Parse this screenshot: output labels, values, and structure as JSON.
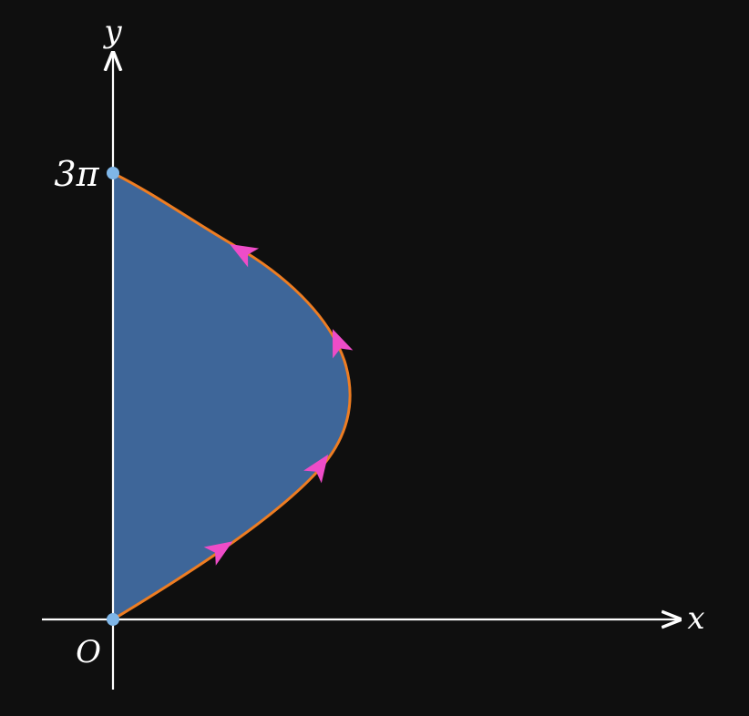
{
  "axes": {
    "x_label": "x",
    "y_label": "y",
    "origin_label": "O",
    "y_tick_label": "3π",
    "color": "#ffffff"
  },
  "region": {
    "fill_color": "#3e6699",
    "boundary_color": "#ee7d22",
    "arrow_color": "#ee4cc8",
    "point_color": "#7fb6e8"
  }
}
